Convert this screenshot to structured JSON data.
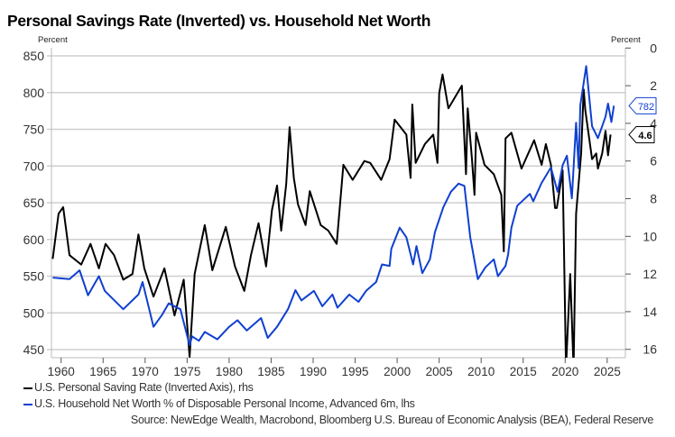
{
  "chart_data": {
    "type": "line",
    "title": "Personal Savings Rate (Inverted) vs. Household Net Worth",
    "left_axis": {
      "label": "Percent",
      "ylim": [
        440,
        860
      ],
      "ticks": [
        450,
        500,
        550,
        600,
        650,
        700,
        750,
        800,
        850
      ],
      "grid": true
    },
    "right_axis": {
      "label": "Percent",
      "ylim": [
        0,
        16.4
      ],
      "inverted": true,
      "ticks": [
        0,
        2,
        4,
        6,
        8,
        10,
        12,
        14,
        16
      ]
    },
    "x_axis": {
      "ticks": [
        1960,
        1965,
        1970,
        1975,
        1980,
        1985,
        1990,
        1995,
        2000,
        2005,
        2010,
        2015,
        2020,
        2025
      ],
      "xlim": [
        1959,
        2027
      ]
    },
    "series": [
      {
        "name": "U.S. Personal Saving Rate (Inverted Axis), rhs",
        "axis": "right",
        "color": "#000000",
        "last_value_label": "4.6",
        "points": [
          [
            1959.0,
            11.2
          ],
          [
            1959.7,
            8.8
          ],
          [
            1960.25,
            8.45
          ],
          [
            1961,
            11.0
          ],
          [
            1962.4,
            11.5
          ],
          [
            1963.5,
            10.4
          ],
          [
            1964.5,
            11.7
          ],
          [
            1965.3,
            10.4
          ],
          [
            1966.3,
            11.0
          ],
          [
            1967.4,
            12.3
          ],
          [
            1968.5,
            12.0
          ],
          [
            1969.2,
            9.9
          ],
          [
            1969.9,
            11.7
          ],
          [
            1971,
            13.2
          ],
          [
            1972.3,
            11.7
          ],
          [
            1973.5,
            14.2
          ],
          [
            1974.6,
            12.3
          ],
          [
            1975.3,
            16.4
          ],
          [
            1975.9,
            12.0
          ],
          [
            1977.1,
            9.4
          ],
          [
            1978,
            11.8
          ],
          [
            1979.6,
            9.5
          ],
          [
            1980.7,
            11.6
          ],
          [
            1981.8,
            12.9
          ],
          [
            1982.6,
            11.0
          ],
          [
            1983.5,
            9.3
          ],
          [
            1984.4,
            11.6
          ],
          [
            1985.1,
            8.6
          ],
          [
            1985.7,
            7.3
          ],
          [
            1986.2,
            9.7
          ],
          [
            1986.8,
            7.2
          ],
          [
            1987.2,
            4.2
          ],
          [
            1987.7,
            6.9
          ],
          [
            1988.2,
            8.3
          ],
          [
            1989.1,
            9.4
          ],
          [
            1989.6,
            7.6
          ],
          [
            1990.9,
            9.4
          ],
          [
            1991.8,
            9.7
          ],
          [
            1992.8,
            10.4
          ],
          [
            1993.6,
            6.2
          ],
          [
            1994.7,
            7.0
          ],
          [
            1996.1,
            6.0
          ],
          [
            1996.8,
            6.1
          ],
          [
            1998.1,
            7.0
          ],
          [
            1999.1,
            5.9
          ],
          [
            1999.7,
            3.8
          ],
          [
            2001.1,
            4.6
          ],
          [
            2001.6,
            6.9
          ],
          [
            2001.8,
            3.0
          ],
          [
            2002.2,
            6.1
          ],
          [
            2003.3,
            5.1
          ],
          [
            2004.3,
            4.6
          ],
          [
            2004.8,
            6.1
          ],
          [
            2005.0,
            2.4
          ],
          [
            2005.4,
            1.4
          ],
          [
            2006.1,
            3.2
          ],
          [
            2007.7,
            2.0
          ],
          [
            2008.2,
            6.7
          ],
          [
            2008.4,
            3.2
          ],
          [
            2008.9,
            5.9
          ],
          [
            2009.2,
            7.8
          ],
          [
            2009.4,
            4.5
          ],
          [
            2010.4,
            6.2
          ],
          [
            2011.5,
            6.7
          ],
          [
            2012.4,
            7.8
          ],
          [
            2012.7,
            10.8
          ],
          [
            2012.9,
            4.8
          ],
          [
            2013.6,
            4.5
          ],
          [
            2014.8,
            6.4
          ],
          [
            2016.3,
            4.9
          ],
          [
            2017.2,
            6.2
          ],
          [
            2017.7,
            5.1
          ],
          [
            2018.3,
            6.2
          ],
          [
            2018.8,
            8.5
          ],
          [
            2019.0,
            8.5
          ],
          [
            2019.7,
            6.5
          ],
          [
            2020.1,
            17
          ],
          [
            2020.6,
            12.0
          ],
          [
            2021.0,
            17
          ],
          [
            2021.3,
            8.8
          ],
          [
            2021.9,
            5.6
          ],
          [
            2022.2,
            2.2
          ],
          [
            2022.4,
            3.3
          ],
          [
            2023.2,
            5.9
          ],
          [
            2023.7,
            5.6
          ],
          [
            2023.9,
            6.4
          ],
          [
            2024.4,
            5.6
          ],
          [
            2024.8,
            4.4
          ],
          [
            2025.1,
            5.7
          ],
          [
            2025.4,
            4.6
          ]
        ]
      },
      {
        "name": "U.S. Household Net Worth % of Disposable Personal Income, Advanced 6m, lhs",
        "axis": "left",
        "color": "#1040d0",
        "last_value_label": "782",
        "points": [
          [
            1959,
            548
          ],
          [
            1961,
            546
          ],
          [
            1962.2,
            558
          ],
          [
            1963.2,
            524
          ],
          [
            1964.5,
            550
          ],
          [
            1965.2,
            530
          ],
          [
            1967.4,
            505
          ],
          [
            1969.2,
            525
          ],
          [
            1969.7,
            542
          ],
          [
            1971,
            481
          ],
          [
            1972,
            497
          ],
          [
            1972.8,
            513
          ],
          [
            1974.2,
            505
          ],
          [
            1975.3,
            456
          ],
          [
            1975.6,
            468
          ],
          [
            1976.4,
            462
          ],
          [
            1977.1,
            474
          ],
          [
            1978.6,
            464
          ],
          [
            1980,
            481
          ],
          [
            1981,
            490
          ],
          [
            1982.1,
            476
          ],
          [
            1983.8,
            493
          ],
          [
            1984.6,
            466
          ],
          [
            1985.7,
            481
          ],
          [
            1987,
            505
          ],
          [
            1987.9,
            531
          ],
          [
            1988.6,
            517
          ],
          [
            1990.1,
            530
          ],
          [
            1991.1,
            509
          ],
          [
            1992.3,
            525
          ],
          [
            1992.9,
            507
          ],
          [
            1994.3,
            525
          ],
          [
            1995.4,
            515
          ],
          [
            1996.3,
            530
          ],
          [
            1997.5,
            542
          ],
          [
            1998.2,
            566
          ],
          [
            1999.1,
            564
          ],
          [
            1999.3,
            587
          ],
          [
            2000.3,
            616
          ],
          [
            2001.1,
            603
          ],
          [
            2001.9,
            566
          ],
          [
            2002.3,
            591
          ],
          [
            2003.0,
            554
          ],
          [
            2003.9,
            573
          ],
          [
            2004.5,
            610
          ],
          [
            2005.5,
            644
          ],
          [
            2006.4,
            665
          ],
          [
            2007.3,
            676
          ],
          [
            2008.0,
            673
          ],
          [
            2008.7,
            603
          ],
          [
            2009.6,
            546
          ],
          [
            2010.5,
            562
          ],
          [
            2011.5,
            573
          ],
          [
            2012.0,
            550
          ],
          [
            2012.9,
            564
          ],
          [
            2013.2,
            579
          ],
          [
            2013.6,
            616
          ],
          [
            2014.3,
            646
          ],
          [
            2015.8,
            662
          ],
          [
            2016.2,
            652
          ],
          [
            2017.2,
            677
          ],
          [
            2018.3,
            698
          ],
          [
            2019.1,
            665
          ],
          [
            2019.7,
            701
          ],
          [
            2020.2,
            714
          ],
          [
            2020.8,
            656
          ],
          [
            2021.3,
            759
          ],
          [
            2021.6,
            697
          ],
          [
            2021.8,
            783
          ],
          [
            2022.5,
            836
          ],
          [
            2023.2,
            754
          ],
          [
            2023.9,
            738
          ],
          [
            2024.8,
            767
          ],
          [
            2025.1,
            785
          ],
          [
            2025.5,
            760
          ],
          [
            2025.8,
            782
          ]
        ]
      }
    ],
    "legend_position": "bottom-left",
    "source": "Source: NewEdge Wealth, Macrobond, Bloomberg U.S. Bureau of Economic Analysis (BEA), Federal Reserve"
  }
}
